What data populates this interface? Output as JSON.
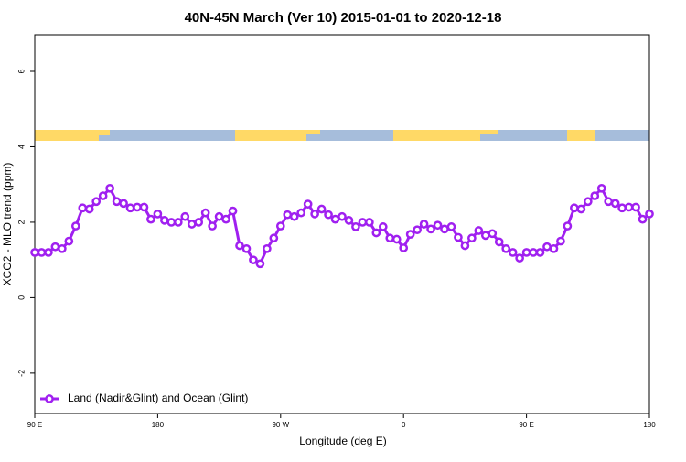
{
  "chart_data": {
    "type": "line",
    "title": "40N-45N March (Ver 10)   2015-01-01 to 2020-12-18",
    "xlabel": "Longitude (deg E)",
    "ylabel": "XCO2 - MLO trend (ppm)",
    "x": [
      90,
      95,
      100,
      105,
      110,
      115,
      120,
      125,
      130,
      135,
      140,
      145,
      150,
      155,
      160,
      165,
      170,
      175,
      180,
      185,
      190,
      195,
      200,
      205,
      210,
      215,
      220,
      225,
      230,
      235,
      240,
      245,
      250,
      255,
      260,
      265,
      270,
      275,
      280,
      285,
      290,
      295,
      300,
      305,
      310,
      315,
      320,
      325,
      330,
      335,
      340,
      345,
      350,
      355,
      360,
      365,
      370,
      375,
      380,
      385,
      390,
      395,
      400,
      405,
      410,
      415,
      420,
      425,
      430,
      435,
      440,
      445,
      450,
      455,
      460,
      465,
      470,
      475,
      480,
      485,
      490,
      495,
      500,
      505,
      510,
      515,
      520,
      525,
      530,
      535,
      540
    ],
    "series": [
      {
        "name": "Land (Nadir&Glint) and Ocean (Glint)",
        "color": "#a020f0",
        "values": [
          1.2,
          1.2,
          1.2,
          1.35,
          1.3,
          1.5,
          1.9,
          2.38,
          2.35,
          2.55,
          2.7,
          2.9,
          2.55,
          2.5,
          2.38,
          2.4,
          2.4,
          2.08,
          2.22,
          2.05,
          2.0,
          2.0,
          2.15,
          1.95,
          2.0,
          2.25,
          1.9,
          2.15,
          2.08,
          2.3,
          1.38,
          1.3,
          1.0,
          0.9,
          1.3,
          1.58,
          1.9,
          2.2,
          2.15,
          2.25,
          2.48,
          2.22,
          2.35,
          2.2,
          2.08,
          2.15,
          2.05,
          1.88,
          2.0,
          2.0,
          1.72,
          1.88,
          1.58,
          1.55,
          1.32,
          1.68,
          1.8,
          1.95,
          1.82,
          1.92,
          1.82,
          1.88,
          1.6,
          1.38,
          1.58,
          1.78,
          1.65,
          1.7,
          1.48,
          1.3,
          1.2,
          1.05,
          1.2,
          1.2,
          1.2,
          1.35,
          1.3,
          1.5,
          1.9,
          2.38,
          2.35,
          2.55,
          2.7,
          2.9,
          2.55,
          2.5,
          2.38,
          2.4,
          2.4,
          2.08,
          2.22
        ]
      }
    ],
    "xlim": [
      90,
      540
    ],
    "xticks": [
      {
        "value": 90,
        "label": "90 E"
      },
      180,
      {
        "value": 270,
        "label": "90 W"
      },
      {
        "value": 360,
        "label": "0"
      },
      {
        "value": 450,
        "label": "90 E"
      },
      {
        "value": 540,
        "label": "180"
      }
    ],
    "ylim": [
      -3.07,
      6.97
    ],
    "yticks": [
      -2,
      0,
      2,
      4,
      6
    ],
    "legend": "bottomleft"
  }
}
